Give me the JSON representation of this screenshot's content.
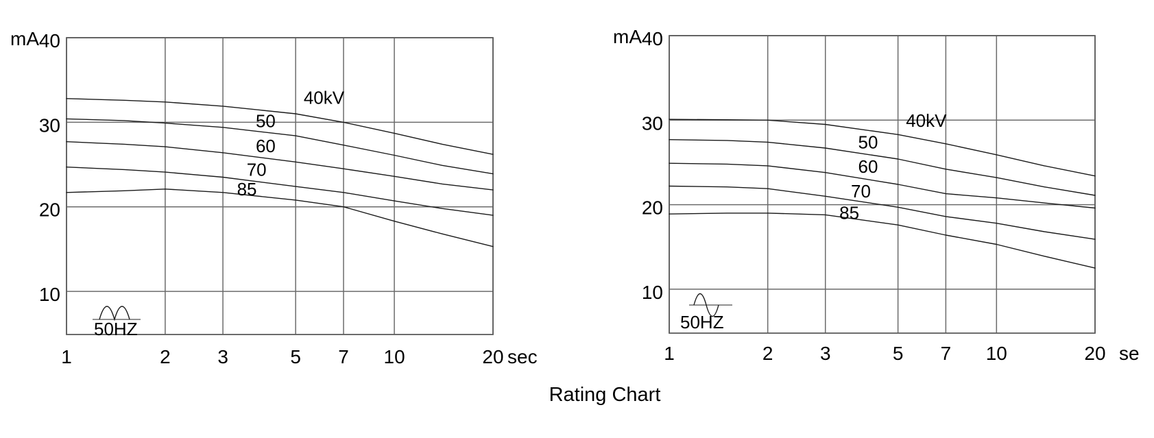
{
  "title": "Rating Chart",
  "chart_data": [
    {
      "type": "line",
      "name": "rating-chart-full-wave-rectified",
      "title": "",
      "ylabel": "mA",
      "x_unit": "sec",
      "x_scale": "log",
      "xlim": [
        1,
        20
      ],
      "ylim": [
        4.9,
        40
      ],
      "x_ticks": [
        1,
        2,
        3,
        5,
        7,
        10,
        20
      ],
      "y_ticks": [
        40,
        30,
        20,
        10
      ],
      "grid": true,
      "x": [
        1,
        1.5,
        2,
        3,
        5,
        7,
        10,
        14,
        20
      ],
      "series": [
        {
          "name": "40kV",
          "values": [
            32.8,
            32.6,
            32.4,
            31.9,
            31.0,
            30.0,
            28.7,
            27.4,
            26.2
          ],
          "label_pos": [
            6.1,
            32.9
          ]
        },
        {
          "name": "50",
          "values": [
            30.4,
            30.2,
            29.9,
            29.4,
            28.4,
            27.3,
            26.1,
            24.9,
            23.9
          ],
          "label_pos": [
            4.05,
            30.15
          ]
        },
        {
          "name": "60",
          "values": [
            27.7,
            27.4,
            27.1,
            26.4,
            25.3,
            24.5,
            23.6,
            22.7,
            22.0
          ],
          "label_pos": [
            4.05,
            27.2
          ]
        },
        {
          "name": "70",
          "values": [
            24.7,
            24.4,
            24.1,
            23.5,
            22.4,
            21.7,
            20.7,
            19.8,
            19.0
          ],
          "label_pos": [
            3.8,
            24.4
          ]
        },
        {
          "name": "85",
          "values": [
            21.7,
            21.9,
            22.1,
            21.7,
            20.8,
            20.0,
            18.3,
            16.8,
            15.3
          ],
          "label_pos": [
            3.55,
            22.1
          ]
        }
      ],
      "waveform": {
        "type": "full-wave-rectified",
        "label": "50HZ"
      }
    },
    {
      "type": "line",
      "name": "rating-chart-self-rectified",
      "title": "",
      "ylabel": "mA",
      "x_unit": "se",
      "x_scale": "log",
      "xlim": [
        1,
        20
      ],
      "ylim": [
        4.8,
        40
      ],
      "x_ticks": [
        1,
        2,
        3,
        5,
        7,
        10,
        20
      ],
      "y_ticks": [
        40,
        30,
        20,
        10
      ],
      "grid": true,
      "x": [
        1,
        1.5,
        2,
        3,
        5,
        7,
        10,
        14,
        20
      ],
      "series": [
        {
          "name": "40kV",
          "values": [
            30.1,
            30.05,
            30.0,
            29.5,
            28.3,
            27.2,
            25.9,
            24.6,
            23.4
          ],
          "label_pos": [
            6.1,
            29.95
          ]
        },
        {
          "name": "50",
          "values": [
            27.7,
            27.6,
            27.4,
            26.7,
            25.4,
            24.2,
            23.2,
            22.1,
            21.1
          ],
          "label_pos": [
            4.05,
            27.4
          ]
        },
        {
          "name": "60",
          "values": [
            24.9,
            24.8,
            24.6,
            23.8,
            22.4,
            21.3,
            20.8,
            20.2,
            19.6
          ],
          "label_pos": [
            4.05,
            24.5
          ]
        },
        {
          "name": "70",
          "values": [
            22.2,
            22.1,
            21.9,
            21.0,
            19.7,
            18.6,
            17.8,
            16.8,
            15.9
          ],
          "label_pos": [
            3.85,
            21.6
          ]
        },
        {
          "name": "85",
          "values": [
            18.9,
            19.0,
            19.0,
            18.8,
            17.6,
            16.4,
            15.3,
            13.9,
            12.5
          ],
          "label_pos": [
            3.55,
            19.05
          ]
        }
      ],
      "waveform": {
        "type": "ac-sine",
        "label": "50HZ"
      }
    }
  ]
}
